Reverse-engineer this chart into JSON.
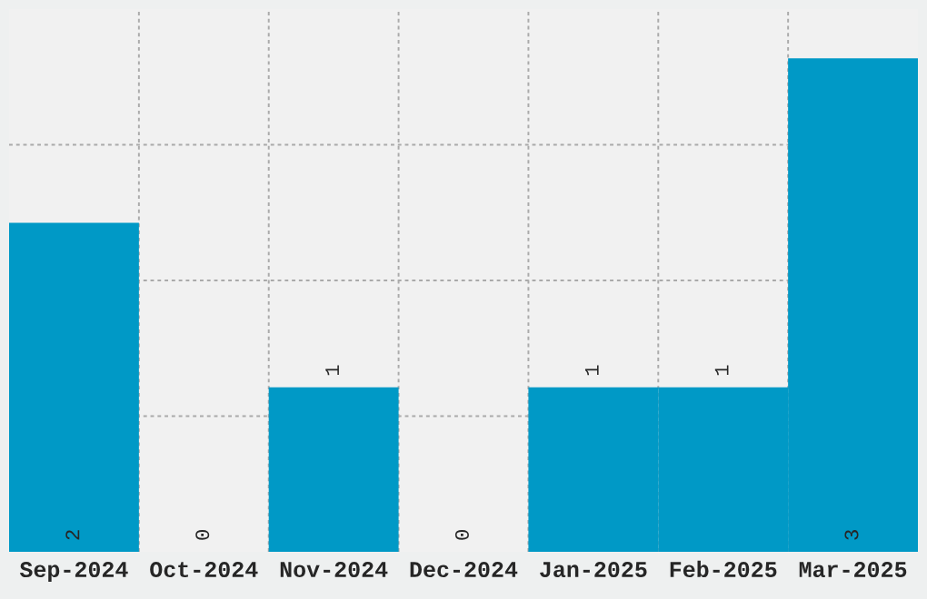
{
  "chart_data": {
    "type": "bar",
    "categories": [
      "Sep-2024",
      "Oct-2024",
      "Nov-2024",
      "Dec-2024",
      "Jan-2025",
      "Feb-2025",
      "Mar-2025"
    ],
    "values": [
      2,
      0,
      1,
      0,
      1,
      1,
      3
    ],
    "color": "#0099c6",
    "ylim": [
      0,
      3.3
    ],
    "yticks": [
      {
        "value": 0.825,
        "label": null
      },
      {
        "value": 1.65,
        "label": null
      },
      {
        "value": 2.475,
        "label": null
      }
    ],
    "grid": true,
    "data_labels": true
  }
}
